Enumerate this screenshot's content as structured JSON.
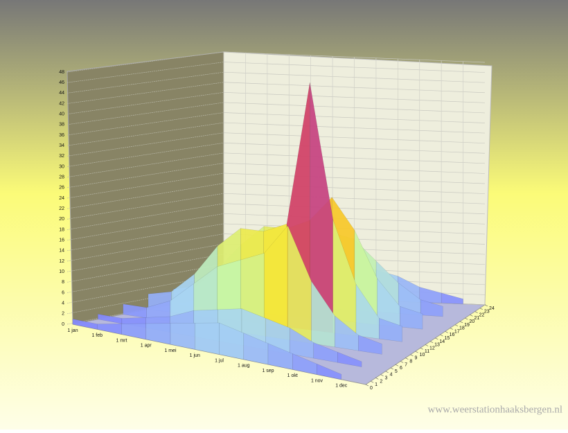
{
  "chart_data": {
    "type": "surface3d",
    "categories": [
      "1 jan",
      "1 feb",
      "1 mrt",
      "1 apr",
      "1 mei",
      "1 jun",
      "1 jul",
      "1 aug",
      "1 sep",
      "1 okt",
      "1 nov",
      "1 dec"
    ],
    "zticks": [
      0,
      1,
      2,
      3,
      4,
      5,
      6,
      7,
      8,
      9,
      10,
      11,
      12,
      13,
      14,
      15,
      16,
      17,
      18,
      19,
      20,
      21,
      22,
      23,
      24
    ],
    "zlim": [
      0,
      24
    ],
    "ylim": [
      0,
      48
    ],
    "yticks": [
      0,
      2,
      4,
      6,
      8,
      10,
      12,
      14,
      16,
      18,
      20,
      22,
      24,
      26,
      28,
      30,
      32,
      34,
      36,
      38,
      40,
      42,
      44,
      46,
      48
    ],
    "grid": true,
    "rows": [
      {
        "hour": 24,
        "values": [
          1,
          1,
          2,
          4,
          6,
          7,
          8,
          6,
          5,
          3,
          2,
          1
        ]
      },
      {
        "hour": 20,
        "values": [
          2,
          2,
          5,
          9,
          12,
          14,
          15,
          14,
          10,
          6,
          3,
          2
        ]
      },
      {
        "hour": 16,
        "values": [
          3,
          4,
          8,
          13,
          17,
          17,
          19,
          24,
          18,
          9,
          4,
          3
        ]
      },
      {
        "hour": 12,
        "values": [
          3,
          4,
          8,
          14,
          18,
          18,
          20,
          48,
          22,
          10,
          4,
          3
        ]
      },
      {
        "hour": 8,
        "values": [
          2,
          2,
          4,
          8,
          12,
          14,
          16,
          22,
          12,
          6,
          3,
          2
        ]
      },
      {
        "hour": 4,
        "values": [
          1,
          1,
          2,
          3,
          5,
          6,
          7,
          6,
          5,
          3,
          2,
          1
        ]
      },
      {
        "hour": 0,
        "values": [
          1,
          1,
          2,
          3,
          4,
          5,
          6,
          5,
          4,
          3,
          2,
          1
        ]
      }
    ],
    "colorscale": [
      [
        0,
        "#7b7bff"
      ],
      [
        6,
        "#a8d4f2"
      ],
      [
        13,
        "#c6f5a8"
      ],
      [
        19,
        "#f3e63c"
      ],
      [
        24,
        "#ff9a10"
      ],
      [
        30,
        "#ff3a00"
      ],
      [
        40,
        "#8c4bff"
      ]
    ],
    "watermark": "www.weerstationhaaksbergen.nl"
  }
}
